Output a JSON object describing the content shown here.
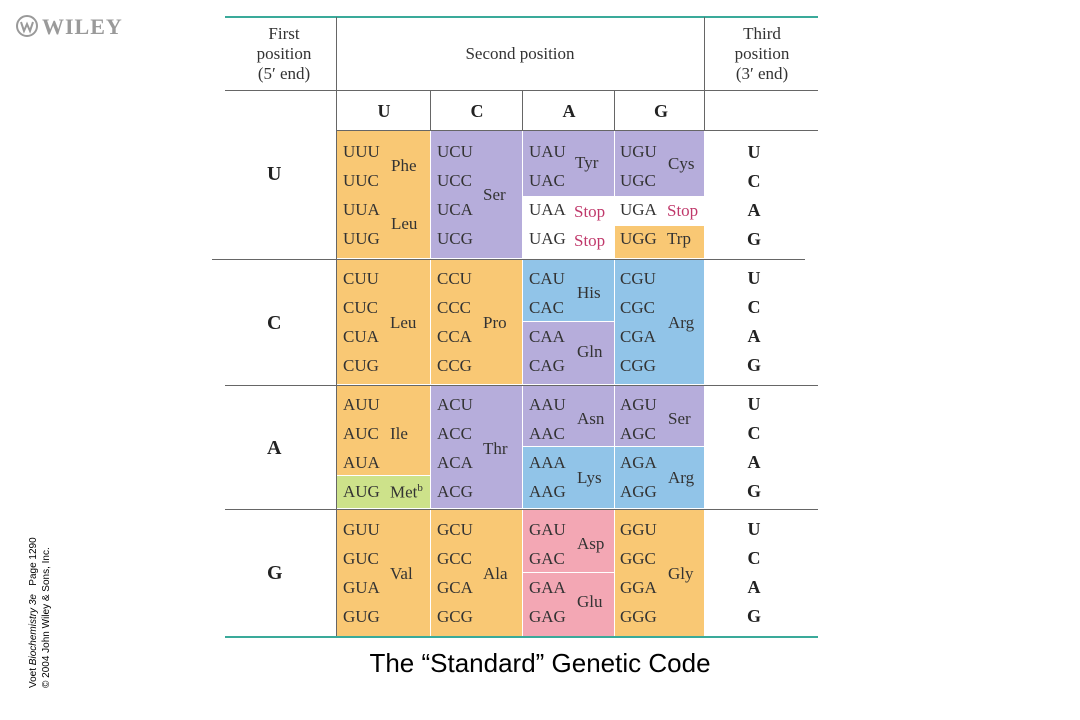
{
  "logo": {
    "text": "WILEY"
  },
  "headers": {
    "first": [
      "First",
      "position",
      "(5′ end)"
    ],
    "second": "Second position",
    "third": [
      "Third",
      "position",
      "(3′ end)"
    ]
  },
  "columns": [
    "U",
    "C",
    "A",
    "G"
  ],
  "rows": [
    "U",
    "C",
    "A",
    "G"
  ],
  "third_letters": [
    "U",
    "C",
    "A",
    "G"
  ],
  "codons": [
    [
      [
        "UUU",
        "UUC",
        "UUA",
        "UUG"
      ],
      [
        "UCU",
        "UCC",
        "UCA",
        "UCG"
      ],
      [
        "UAU",
        "UAC",
        "UAA",
        "UAG"
      ],
      [
        "UGU",
        "UGC",
        "UGA",
        "UGG"
      ]
    ],
    [
      [
        "CUU",
        "CUC",
        "CUA",
        "CUG"
      ],
      [
        "CCU",
        "CCC",
        "CCA",
        "CCG"
      ],
      [
        "CAU",
        "CAC",
        "CAA",
        "CAG"
      ],
      [
        "CGU",
        "CGC",
        "CGA",
        "CGG"
      ]
    ],
    [
      [
        "AUU",
        "AUC",
        "AUA",
        "AUG"
      ],
      [
        "ACU",
        "ACC",
        "ACA",
        "ACG"
      ],
      [
        "AAU",
        "AAC",
        "AAA",
        "AAG"
      ],
      [
        "AGU",
        "AGC",
        "AGA",
        "AGG"
      ]
    ],
    [
      [
        "GUU",
        "GUC",
        "GUA",
        "GUG"
      ],
      [
        "GCU",
        "GCC",
        "GCA",
        "GCG"
      ],
      [
        "GAU",
        "GAC",
        "GAA",
        "GAG"
      ],
      [
        "GGU",
        "GGC",
        "GGA",
        "GGG"
      ]
    ]
  ],
  "amino_acids": {
    "phe": "Phe",
    "leu1": "Leu",
    "ser1": "Ser",
    "tyr": "Tyr",
    "stop1": "Stop",
    "stop2": "Stop",
    "cys": "Cys",
    "stop3": "Stop",
    "trp": "Trp",
    "leu2": "Leu",
    "pro": "Pro",
    "his": "His",
    "gln": "Gln",
    "arg1": "Arg",
    "ile": "Ile",
    "met": "Met",
    "met_sup": "b",
    "thr": "Thr",
    "asn": "Asn",
    "lys": "Lys",
    "ser2": "Ser",
    "arg2": "Arg",
    "val": "Val",
    "ala": "Ala",
    "asp": "Asp",
    "glu": "Glu",
    "gly": "Gly"
  },
  "caption": "The “Standard” Genetic Code",
  "side_text": {
    "line1_a": "Voet ",
    "line1_italic": "Biochemistry 3e",
    "line1_b": "   Page 1290",
    "line2": "© 2004  John Wiley & Sons, Inc."
  },
  "colors": {
    "orange": "#f9c874",
    "purple": "#b6addb",
    "blue": "#91c4e8",
    "pink": "#f3a7b4",
    "green": "#cde28a",
    "teal_rule": "#3aaa9a",
    "stop": "#c0396b"
  }
}
